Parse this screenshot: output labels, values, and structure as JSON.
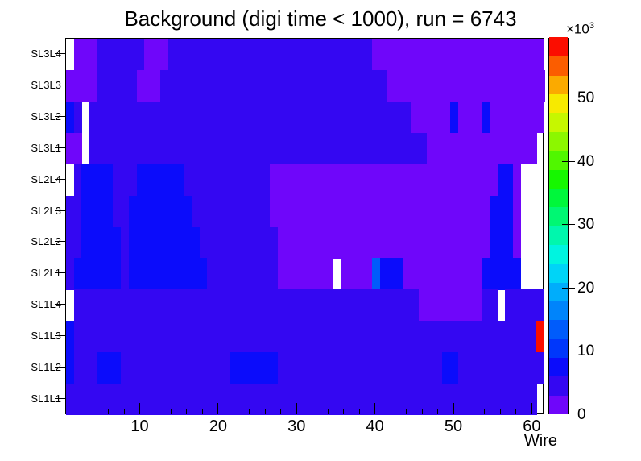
{
  "title": "Background (digi time < 1000), run = 6743",
  "x_axis": {
    "title": "Wire",
    "major_tick_labels": [
      "10",
      "20",
      "30",
      "40",
      "50",
      "60"
    ],
    "major_tick_values": [
      10,
      20,
      30,
      40,
      50,
      60
    ],
    "minor_tick_step": 2
  },
  "y_axis": {
    "labels_top_to_bottom": [
      "SL3L4",
      "SL3L3",
      "SL3L2",
      "SL3L1",
      "SL2L4",
      "SL2L3",
      "SL2L2",
      "SL2L1",
      "SL1L4",
      "SL1L3",
      "SL1L2",
      "SL1L1"
    ]
  },
  "z_axis": {
    "tick_labels": [
      "0",
      "10",
      "20",
      "30",
      "40",
      "50"
    ],
    "tick_values": [
      0,
      10000,
      20000,
      30000,
      40000,
      50000
    ],
    "multiplier_base": "×10",
    "multiplier_exponent": "3",
    "scale_max": 59500
  },
  "chart_data": {
    "type": "heatmap",
    "title": "Background (digi time < 1000), run = 6743",
    "xlabel": "Wire",
    "ylabel": "",
    "x_range": [
      1,
      61
    ],
    "rows_top_to_bottom": [
      "SL3L4",
      "SL3L3",
      "SL3L2",
      "SL3L1",
      "SL2L4",
      "SL2L3",
      "SL2L2",
      "SL2L1",
      "SL1L4",
      "SL1L3",
      "SL1L2",
      "SL1L1"
    ],
    "z_min": 0,
    "z_max": 59500,
    "n_bands": 20,
    "band_value_width": 3000,
    "legend_position": "right",
    "grid": false,
    "empty_color": "#ffffff",
    "palette_low_to_high": [
      "#6f06fa",
      "#3407f2",
      "#0b0cfb",
      "#0037fb",
      "#005cfb",
      "#0084fb",
      "#00adfb",
      "#00d4f7",
      "#00f4e0",
      "#00f7ad",
      "#00f773",
      "#00f73b",
      "#16f700",
      "#50f700",
      "#8cf700",
      "#c6f700",
      "#f7ea00",
      "#fbaa00",
      "#fb5d00",
      "#fb0d00"
    ],
    "cells_encoding": "runs of [wire_from, wire_to, band_level]; band_level 1-20 indexes palette_low_to_high, 0 = empty bin (white); approx value = (level-0.5)*3000",
    "row_runs": [
      {
        "row": "SL3L4",
        "runs": [
          [
            1,
            1,
            0
          ],
          [
            2,
            4,
            1
          ],
          [
            5,
            10,
            2
          ],
          [
            11,
            13,
            1
          ],
          [
            14,
            39,
            2
          ],
          [
            40,
            61,
            1
          ]
        ]
      },
      {
        "row": "SL3L3",
        "runs": [
          [
            1,
            4,
            1
          ],
          [
            5,
            9,
            2
          ],
          [
            10,
            12,
            1
          ],
          [
            13,
            41,
            2
          ],
          [
            42,
            61,
            1
          ]
        ]
      },
      {
        "row": "SL3L2",
        "runs": [
          [
            1,
            1,
            3
          ],
          [
            2,
            2,
            2
          ],
          [
            3,
            3,
            0
          ],
          [
            4,
            44,
            2
          ],
          [
            45,
            49,
            1
          ],
          [
            50,
            50,
            3
          ],
          [
            51,
            53,
            1
          ],
          [
            54,
            54,
            3
          ],
          [
            55,
            61,
            1
          ]
        ]
      },
      {
        "row": "SL3L1",
        "runs": [
          [
            1,
            2,
            1
          ],
          [
            3,
            3,
            0
          ],
          [
            4,
            46,
            2
          ],
          [
            47,
            60,
            1
          ],
          [
            61,
            61,
            0
          ]
        ]
      },
      {
        "row": "SL2L4",
        "runs": [
          [
            1,
            1,
            0
          ],
          [
            2,
            2,
            2
          ],
          [
            3,
            6,
            3
          ],
          [
            7,
            9,
            2
          ],
          [
            10,
            15,
            3
          ],
          [
            16,
            26,
            2
          ],
          [
            27,
            55,
            1
          ],
          [
            56,
            57,
            3
          ],
          [
            58,
            58,
            1
          ],
          [
            59,
            61,
            0
          ]
        ]
      },
      {
        "row": "SL2L3",
        "runs": [
          [
            1,
            2,
            2
          ],
          [
            3,
            6,
            3
          ],
          [
            7,
            8,
            2
          ],
          [
            9,
            16,
            3
          ],
          [
            17,
            26,
            2
          ],
          [
            27,
            54,
            1
          ],
          [
            55,
            57,
            3
          ],
          [
            58,
            58,
            1
          ],
          [
            59,
            61,
            0
          ]
        ]
      },
      {
        "row": "SL2L2",
        "runs": [
          [
            1,
            2,
            2
          ],
          [
            3,
            7,
            3
          ],
          [
            8,
            8,
            2
          ],
          [
            9,
            17,
            3
          ],
          [
            18,
            27,
            2
          ],
          [
            28,
            54,
            1
          ],
          [
            55,
            57,
            3
          ],
          [
            58,
            58,
            1
          ],
          [
            59,
            61,
            0
          ]
        ]
      },
      {
        "row": "SL2L1",
        "runs": [
          [
            1,
            1,
            2
          ],
          [
            2,
            7,
            3
          ],
          [
            8,
            8,
            2
          ],
          [
            9,
            18,
            3
          ],
          [
            19,
            27,
            2
          ],
          [
            28,
            34,
            1
          ],
          [
            35,
            35,
            0
          ],
          [
            36,
            39,
            1
          ],
          [
            40,
            40,
            5
          ],
          [
            41,
            43,
            3
          ],
          [
            44,
            53,
            1
          ],
          [
            54,
            58,
            3
          ],
          [
            59,
            61,
            0
          ]
        ]
      },
      {
        "row": "SL1L4",
        "runs": [
          [
            1,
            1,
            0
          ],
          [
            2,
            45,
            2
          ],
          [
            46,
            53,
            1
          ],
          [
            54,
            55,
            2
          ],
          [
            56,
            56,
            0
          ],
          [
            57,
            61,
            2
          ]
        ]
      },
      {
        "row": "SL1L3",
        "runs": [
          [
            1,
            1,
            3
          ],
          [
            2,
            60,
            2
          ],
          [
            61,
            61,
            20
          ]
        ]
      },
      {
        "row": "SL1L2",
        "runs": [
          [
            1,
            1,
            3
          ],
          [
            2,
            4,
            2
          ],
          [
            5,
            7,
            3
          ],
          [
            8,
            21,
            2
          ],
          [
            22,
            27,
            3
          ],
          [
            28,
            48,
            2
          ],
          [
            49,
            50,
            3
          ],
          [
            51,
            61,
            2
          ]
        ]
      },
      {
        "row": "SL1L1",
        "runs": [
          [
            1,
            60,
            2
          ],
          [
            61,
            61,
            0
          ]
        ]
      }
    ]
  },
  "colors": {
    "page_background": "#ffffff",
    "frame_border": "#000000",
    "text": "#000000",
    "dominant_bin": "#3407f2",
    "low_bin": "#6f06fa",
    "hot_bin": "#fb0d00"
  }
}
